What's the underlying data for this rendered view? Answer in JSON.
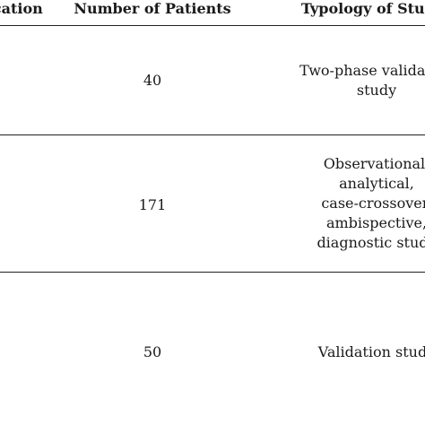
{
  "header": {
    "location_label": "Location",
    "patients_label": "Number of Patients",
    "typology_label": "Typology of Study"
  },
  "rows": [
    {
      "patients": "40",
      "typology_lines": [
        "Two-phase validation",
        "study"
      ]
    },
    {
      "patients": "171",
      "typology_lines": [
        "Observational,",
        "analytical,",
        "case-crossover,",
        "ambispective,",
        "diagnostic study"
      ]
    },
    {
      "patients": "50",
      "typology_lines": [
        "Validation study"
      ]
    }
  ]
}
